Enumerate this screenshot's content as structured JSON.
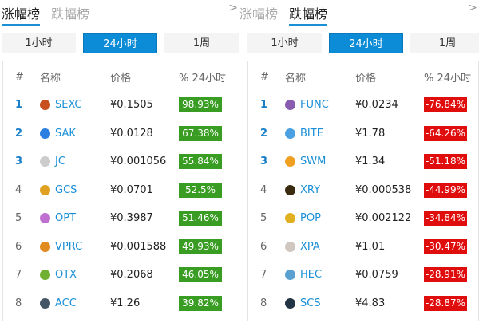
{
  "tabs": [
    "涨幅榜",
    "跌幅榜"
  ],
  "periods": [
    "1小时",
    "24小时",
    "1周"
  ],
  "headers": {
    "rank": "#",
    "name": "名称",
    "price": "价格",
    "pct": "% 24小时"
  },
  "colors": {
    "accent": "#0c8bd6",
    "up": "#3a9d23",
    "down": "#e00d0d"
  },
  "gainers": [
    {
      "rank": "1",
      "name": "SEXC",
      "price": "¥0.1505",
      "pct": "98.93%",
      "icon": "#c8501e"
    },
    {
      "rank": "2",
      "name": "SAK",
      "price": "¥0.0128",
      "pct": "67.38%",
      "icon": "#2a7fe0"
    },
    {
      "rank": "3",
      "name": "JC",
      "price": "¥0.001056",
      "pct": "55.84%",
      "icon": "#cccccc"
    },
    {
      "rank": "4",
      "name": "GCS",
      "price": "¥0.0701",
      "pct": "52.5%",
      "icon": "#e0a020"
    },
    {
      "rank": "5",
      "name": "OPT",
      "price": "¥0.3987",
      "pct": "51.46%",
      "icon": "#c070d0"
    },
    {
      "rank": "6",
      "name": "VPRC",
      "price": "¥0.001588",
      "pct": "49.93%",
      "icon": "#e08a20"
    },
    {
      "rank": "7",
      "name": "OTX",
      "price": "¥0.2068",
      "pct": "46.05%",
      "icon": "#70b030"
    },
    {
      "rank": "8",
      "name": "ACC",
      "price": "¥1.26",
      "pct": "39.82%",
      "icon": "#445566"
    }
  ],
  "losers": [
    {
      "rank": "1",
      "name": "FUNC",
      "price": "¥0.0234",
      "pct": "-76.84%",
      "icon": "#8a5cb0"
    },
    {
      "rank": "2",
      "name": "BITE",
      "price": "¥1.78",
      "pct": "-64.26%",
      "icon": "#4aa0e0"
    },
    {
      "rank": "3",
      "name": "SWM",
      "price": "¥1.34",
      "pct": "-51.18%",
      "icon": "#f0a020"
    },
    {
      "rank": "4",
      "name": "XRY",
      "price": "¥0.000538",
      "pct": "-44.99%",
      "icon": "#3a2a10"
    },
    {
      "rank": "5",
      "name": "POP",
      "price": "¥0.002122",
      "pct": "-34.84%",
      "icon": "#e0b020"
    },
    {
      "rank": "6",
      "name": "XPA",
      "price": "¥1.01",
      "pct": "-30.47%",
      "icon": "#d0c8c0"
    },
    {
      "rank": "7",
      "name": "HEC",
      "price": "¥0.0759",
      "pct": "-28.91%",
      "icon": "#5aa0d0"
    },
    {
      "rank": "8",
      "name": "SCS",
      "price": "¥4.83",
      "pct": "-28.87%",
      "icon": "#223344"
    }
  ]
}
